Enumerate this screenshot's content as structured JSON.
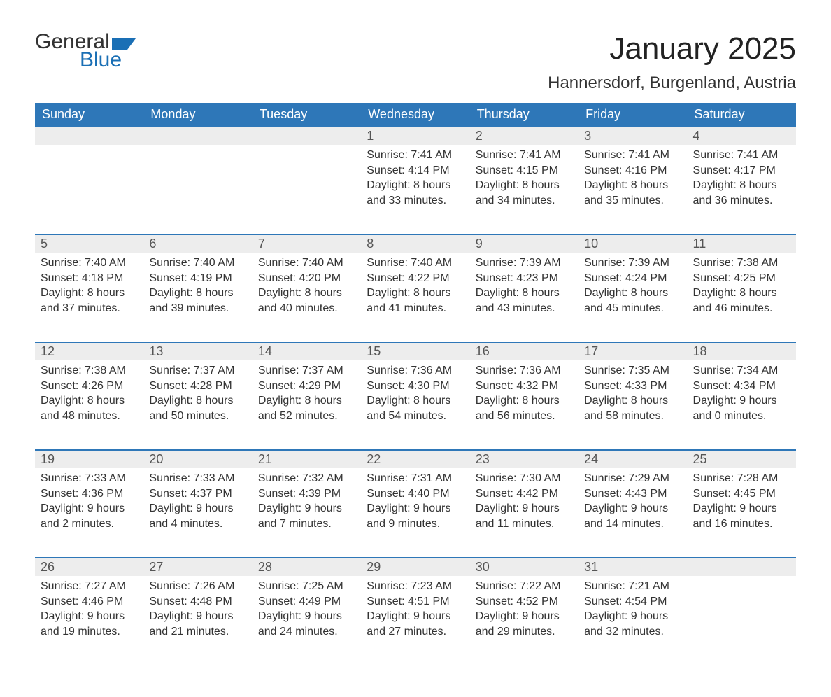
{
  "brand": {
    "word1": "General",
    "word2": "Blue",
    "accent": "#1a6fb5"
  },
  "title": "January 2025",
  "location": "Hannersdorf, Burgenland, Austria",
  "dayHeaders": [
    "Sunday",
    "Monday",
    "Tuesday",
    "Wednesday",
    "Thursday",
    "Friday",
    "Saturday"
  ],
  "colors": {
    "headerBg": "#2e77b8",
    "headerText": "#ffffff",
    "dayNumBg": "#ededed",
    "dayNumBorder": "#2e77b8",
    "bodyText": "#333333"
  },
  "weeks": [
    [
      null,
      null,
      null,
      {
        "n": "1",
        "sunrise": "Sunrise: 7:41 AM",
        "sunset": "Sunset: 4:14 PM",
        "d1": "Daylight: 8 hours",
        "d2": "and 33 minutes."
      },
      {
        "n": "2",
        "sunrise": "Sunrise: 7:41 AM",
        "sunset": "Sunset: 4:15 PM",
        "d1": "Daylight: 8 hours",
        "d2": "and 34 minutes."
      },
      {
        "n": "3",
        "sunrise": "Sunrise: 7:41 AM",
        "sunset": "Sunset: 4:16 PM",
        "d1": "Daylight: 8 hours",
        "d2": "and 35 minutes."
      },
      {
        "n": "4",
        "sunrise": "Sunrise: 7:41 AM",
        "sunset": "Sunset: 4:17 PM",
        "d1": "Daylight: 8 hours",
        "d2": "and 36 minutes."
      }
    ],
    [
      {
        "n": "5",
        "sunrise": "Sunrise: 7:40 AM",
        "sunset": "Sunset: 4:18 PM",
        "d1": "Daylight: 8 hours",
        "d2": "and 37 minutes."
      },
      {
        "n": "6",
        "sunrise": "Sunrise: 7:40 AM",
        "sunset": "Sunset: 4:19 PM",
        "d1": "Daylight: 8 hours",
        "d2": "and 39 minutes."
      },
      {
        "n": "7",
        "sunrise": "Sunrise: 7:40 AM",
        "sunset": "Sunset: 4:20 PM",
        "d1": "Daylight: 8 hours",
        "d2": "and 40 minutes."
      },
      {
        "n": "8",
        "sunrise": "Sunrise: 7:40 AM",
        "sunset": "Sunset: 4:22 PM",
        "d1": "Daylight: 8 hours",
        "d2": "and 41 minutes."
      },
      {
        "n": "9",
        "sunrise": "Sunrise: 7:39 AM",
        "sunset": "Sunset: 4:23 PM",
        "d1": "Daylight: 8 hours",
        "d2": "and 43 minutes."
      },
      {
        "n": "10",
        "sunrise": "Sunrise: 7:39 AM",
        "sunset": "Sunset: 4:24 PM",
        "d1": "Daylight: 8 hours",
        "d2": "and 45 minutes."
      },
      {
        "n": "11",
        "sunrise": "Sunrise: 7:38 AM",
        "sunset": "Sunset: 4:25 PM",
        "d1": "Daylight: 8 hours",
        "d2": "and 46 minutes."
      }
    ],
    [
      {
        "n": "12",
        "sunrise": "Sunrise: 7:38 AM",
        "sunset": "Sunset: 4:26 PM",
        "d1": "Daylight: 8 hours",
        "d2": "and 48 minutes."
      },
      {
        "n": "13",
        "sunrise": "Sunrise: 7:37 AM",
        "sunset": "Sunset: 4:28 PM",
        "d1": "Daylight: 8 hours",
        "d2": "and 50 minutes."
      },
      {
        "n": "14",
        "sunrise": "Sunrise: 7:37 AM",
        "sunset": "Sunset: 4:29 PM",
        "d1": "Daylight: 8 hours",
        "d2": "and 52 minutes."
      },
      {
        "n": "15",
        "sunrise": "Sunrise: 7:36 AM",
        "sunset": "Sunset: 4:30 PM",
        "d1": "Daylight: 8 hours",
        "d2": "and 54 minutes."
      },
      {
        "n": "16",
        "sunrise": "Sunrise: 7:36 AM",
        "sunset": "Sunset: 4:32 PM",
        "d1": "Daylight: 8 hours",
        "d2": "and 56 minutes."
      },
      {
        "n": "17",
        "sunrise": "Sunrise: 7:35 AM",
        "sunset": "Sunset: 4:33 PM",
        "d1": "Daylight: 8 hours",
        "d2": "and 58 minutes."
      },
      {
        "n": "18",
        "sunrise": "Sunrise: 7:34 AM",
        "sunset": "Sunset: 4:34 PM",
        "d1": "Daylight: 9 hours",
        "d2": "and 0 minutes."
      }
    ],
    [
      {
        "n": "19",
        "sunrise": "Sunrise: 7:33 AM",
        "sunset": "Sunset: 4:36 PM",
        "d1": "Daylight: 9 hours",
        "d2": "and 2 minutes."
      },
      {
        "n": "20",
        "sunrise": "Sunrise: 7:33 AM",
        "sunset": "Sunset: 4:37 PM",
        "d1": "Daylight: 9 hours",
        "d2": "and 4 minutes."
      },
      {
        "n": "21",
        "sunrise": "Sunrise: 7:32 AM",
        "sunset": "Sunset: 4:39 PM",
        "d1": "Daylight: 9 hours",
        "d2": "and 7 minutes."
      },
      {
        "n": "22",
        "sunrise": "Sunrise: 7:31 AM",
        "sunset": "Sunset: 4:40 PM",
        "d1": "Daylight: 9 hours",
        "d2": "and 9 minutes."
      },
      {
        "n": "23",
        "sunrise": "Sunrise: 7:30 AM",
        "sunset": "Sunset: 4:42 PM",
        "d1": "Daylight: 9 hours",
        "d2": "and 11 minutes."
      },
      {
        "n": "24",
        "sunrise": "Sunrise: 7:29 AM",
        "sunset": "Sunset: 4:43 PM",
        "d1": "Daylight: 9 hours",
        "d2": "and 14 minutes."
      },
      {
        "n": "25",
        "sunrise": "Sunrise: 7:28 AM",
        "sunset": "Sunset: 4:45 PM",
        "d1": "Daylight: 9 hours",
        "d2": "and 16 minutes."
      }
    ],
    [
      {
        "n": "26",
        "sunrise": "Sunrise: 7:27 AM",
        "sunset": "Sunset: 4:46 PM",
        "d1": "Daylight: 9 hours",
        "d2": "and 19 minutes."
      },
      {
        "n": "27",
        "sunrise": "Sunrise: 7:26 AM",
        "sunset": "Sunset: 4:48 PM",
        "d1": "Daylight: 9 hours",
        "d2": "and 21 minutes."
      },
      {
        "n": "28",
        "sunrise": "Sunrise: 7:25 AM",
        "sunset": "Sunset: 4:49 PM",
        "d1": "Daylight: 9 hours",
        "d2": "and 24 minutes."
      },
      {
        "n": "29",
        "sunrise": "Sunrise: 7:23 AM",
        "sunset": "Sunset: 4:51 PM",
        "d1": "Daylight: 9 hours",
        "d2": "and 27 minutes."
      },
      {
        "n": "30",
        "sunrise": "Sunrise: 7:22 AM",
        "sunset": "Sunset: 4:52 PM",
        "d1": "Daylight: 9 hours",
        "d2": "and 29 minutes."
      },
      {
        "n": "31",
        "sunrise": "Sunrise: 7:21 AM",
        "sunset": "Sunset: 4:54 PM",
        "d1": "Daylight: 9 hours",
        "d2": "and 32 minutes."
      },
      null
    ]
  ]
}
